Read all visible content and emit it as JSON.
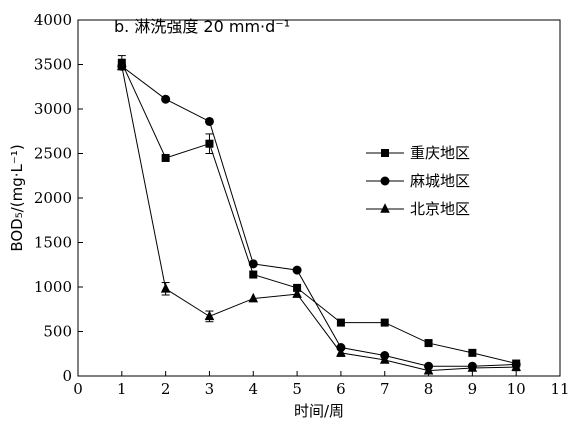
{
  "chart_data": {
    "type": "line",
    "title": "b. 淋洗强度 20 mm·d⁻¹",
    "xlabel": "时间/周",
    "ylabel": "BOD₅/(mg·L⁻¹)",
    "xlim": [
      0,
      11
    ],
    "ylim": [
      0,
      4000
    ],
    "xticks": [
      0,
      1,
      2,
      3,
      4,
      5,
      6,
      7,
      8,
      9,
      10,
      11
    ],
    "yticks": [
      0,
      500,
      1000,
      1500,
      2000,
      2500,
      3000,
      3500,
      4000
    ],
    "grid": false,
    "legend_position": "right",
    "series": [
      {
        "name": "重庆地区",
        "marker": "square",
        "x": [
          1,
          2,
          3,
          4,
          5,
          6,
          7,
          8,
          9,
          10
        ],
        "y": [
          3520,
          2450,
          2610,
          1140,
          990,
          600,
          600,
          370,
          260,
          140
        ],
        "err": [
          80,
          0,
          110,
          0,
          0,
          0,
          0,
          0,
          0,
          0
        ]
      },
      {
        "name": "麻城地区",
        "marker": "circle",
        "x": [
          1,
          2,
          3,
          4,
          5,
          6,
          7,
          8,
          9,
          10
        ],
        "y": [
          3480,
          3110,
          2860,
          1260,
          1190,
          320,
          230,
          110,
          110,
          130
        ],
        "err": [
          0,
          0,
          0,
          0,
          0,
          0,
          0,
          0,
          0,
          0
        ]
      },
      {
        "name": "北京地区",
        "marker": "triangle",
        "x": [
          1,
          2,
          3,
          4,
          5,
          6,
          7,
          8,
          9,
          10
        ],
        "y": [
          3480,
          980,
          670,
          870,
          920,
          260,
          180,
          60,
          90,
          100
        ],
        "err": [
          0,
          70,
          60,
          0,
          0,
          40,
          0,
          0,
          0,
          40
        ]
      }
    ]
  }
}
